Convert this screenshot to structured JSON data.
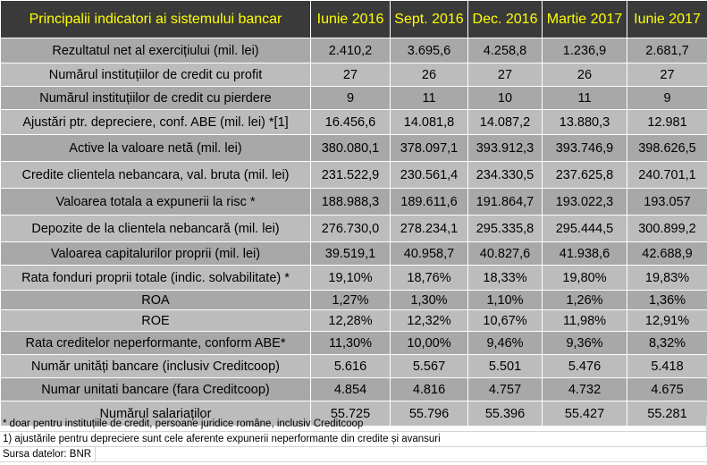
{
  "table": {
    "headers": [
      "Principalii indicatori ai sistemului bancar",
      "Iunie 2016",
      "Sept. 2016",
      "Dec. 2016",
      "Martie 2017",
      "Iunie 2017"
    ],
    "rows": [
      {
        "label": "Rezultatul net al exercițiului (mil. lei)",
        "values": [
          "2.410,2",
          "3.695,6",
          "4.258,8",
          "1.236,9",
          "2.681,7"
        ]
      },
      {
        "label": "Numărul instituțiilor de credit cu profit",
        "values": [
          "27",
          "26",
          "27",
          "26",
          "27"
        ]
      },
      {
        "label": "Numărul instituțiilor de credit cu pierdere",
        "values": [
          "9",
          "11",
          "10",
          "11",
          "9"
        ]
      },
      {
        "label": "Ajustări ptr. depreciere, conf. ABE (mil. lei) *[1]",
        "values": [
          "16.456,6",
          "14.081,8",
          "14.087,2",
          "13.880,3",
          "12.981"
        ]
      },
      {
        "label": "Active la valoare netă (mil. lei)",
        "values": [
          "380.080,1",
          "378.097,1",
          "393.912,3",
          "393.746,9",
          "398.626,5"
        ]
      },
      {
        "label": "Credite clientela nebancara, val. bruta (mil. lei)",
        "values": [
          "231.522,9",
          "230.561,4",
          "234.330,5",
          "237.625,8",
          "240.701,1"
        ]
      },
      {
        "label": "Valoarea totala a expunerii la risc *",
        "values": [
          "188.988,3",
          "189.611,6",
          "191.864,7",
          "193.022,3",
          "193.057"
        ]
      },
      {
        "label": "Depozite de la clientela nebancară (mil. lei)",
        "values": [
          "276.730,0",
          "278.234,1",
          "295.335,8",
          "295.444,5",
          "300.899,2"
        ]
      },
      {
        "label": "Valoarea capitalurilor proprii  (mil. lei)",
        "values": [
          "39.519,1",
          "40.958,7",
          "40.827,6",
          "41.938,6",
          "42.688,9"
        ]
      },
      {
        "label": "Rata fonduri proprii totale (indic. solvabilitate) *",
        "values": [
          "19,10%",
          "18,76%",
          "18,33%",
          "19,80%",
          "19,83%"
        ]
      },
      {
        "label": "ROA",
        "values": [
          "1,27%",
          "1,30%",
          "1,10%",
          "1,26%",
          "1,36%"
        ]
      },
      {
        "label": "ROE",
        "values": [
          "12,28%",
          "12,32%",
          "10,67%",
          "11,98%",
          "12,91%"
        ]
      },
      {
        "label": "Rata creditelor neperformante, conform ABE*",
        "values": [
          "11,30%",
          "10,00%",
          "9,46%",
          "9,36%",
          "8,32%"
        ]
      },
      {
        "label": "Număr unități bancare (inclusiv Creditcoop)",
        "values": [
          "5.616",
          "5.567",
          "5.501",
          "5.476",
          "5.418"
        ]
      },
      {
        "label": "Numar unitati bancare (fara Creditcoop)",
        "values": [
          "4.854",
          "4.816",
          "4.757",
          "4.732",
          "4.675"
        ]
      },
      {
        "label": "Numărul salariaților",
        "values": [
          "55.725",
          "55.796",
          "55.396",
          "55.427",
          "55.281"
        ]
      }
    ]
  },
  "notes": {
    "note1": "* doar pentru instituțiile de credit, persoane juridice române, inclusiv Creditcoop",
    "note2": "1)  ajustările pentru depreciere sunt cele aferente expunerii neperformante din credite și avansuri",
    "source": "Sursa datelor: BNR"
  },
  "colors": {
    "header_bg": "#3a3a3a",
    "header_text": "#ffff00",
    "row_bg_a": "#a8a8a8",
    "row_bg_b": "#bcbcbc"
  }
}
